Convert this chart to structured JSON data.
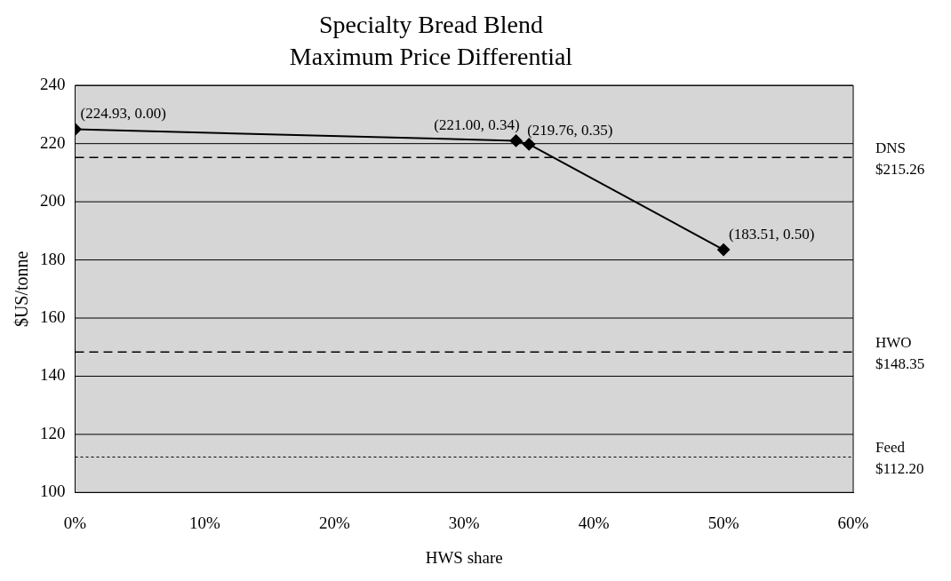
{
  "chart_data": {
    "type": "line",
    "title": "Specialty Bread Blend",
    "subtitle": "Maximum Price Differential",
    "xlabel": "HWS share",
    "ylabel": "$US/tonne",
    "x": [
      0,
      0.34,
      0.35,
      0.5
    ],
    "series": [
      {
        "color": "#000000",
        "values": [
          224.93,
          221.0,
          219.76,
          183.51
        ],
        "value_labels": [
          "(224.93, 0.00)",
          "(221.00, 0.34)",
          "(219.76, 0.35)",
          "(183.51, 0.50)"
        ]
      }
    ],
    "xlim": [
      0,
      0.6
    ],
    "xticks": [
      {
        "value": 0,
        "label": "0%"
      },
      {
        "value": 0.1,
        "label": "10%"
      },
      {
        "value": 0.2,
        "label": "20%"
      },
      {
        "value": 0.3,
        "label": "30%"
      },
      {
        "value": 0.4,
        "label": "40%"
      },
      {
        "value": 0.5,
        "label": "50%"
      },
      {
        "value": 0.6,
        "label": "60%"
      }
    ],
    "ylim": [
      100,
      240
    ],
    "yticks": [
      100,
      120,
      140,
      160,
      180,
      200,
      220,
      240
    ],
    "ref_lines": [
      {
        "axis": "y",
        "value": 215.26,
        "label": "DNS $215.26",
        "color": "#000000",
        "line_style": "dashed"
      },
      {
        "axis": "y",
        "value": 148.35,
        "label": "HWO $148.35",
        "color": "#000000",
        "line_style": "dashed"
      },
      {
        "axis": "y",
        "value": 112.2,
        "label": "Feed $112.20",
        "color": "#000000",
        "line_style": "dotted"
      }
    ],
    "grid": "y",
    "legend": false,
    "marker": "diamond",
    "line_style": "solid"
  }
}
